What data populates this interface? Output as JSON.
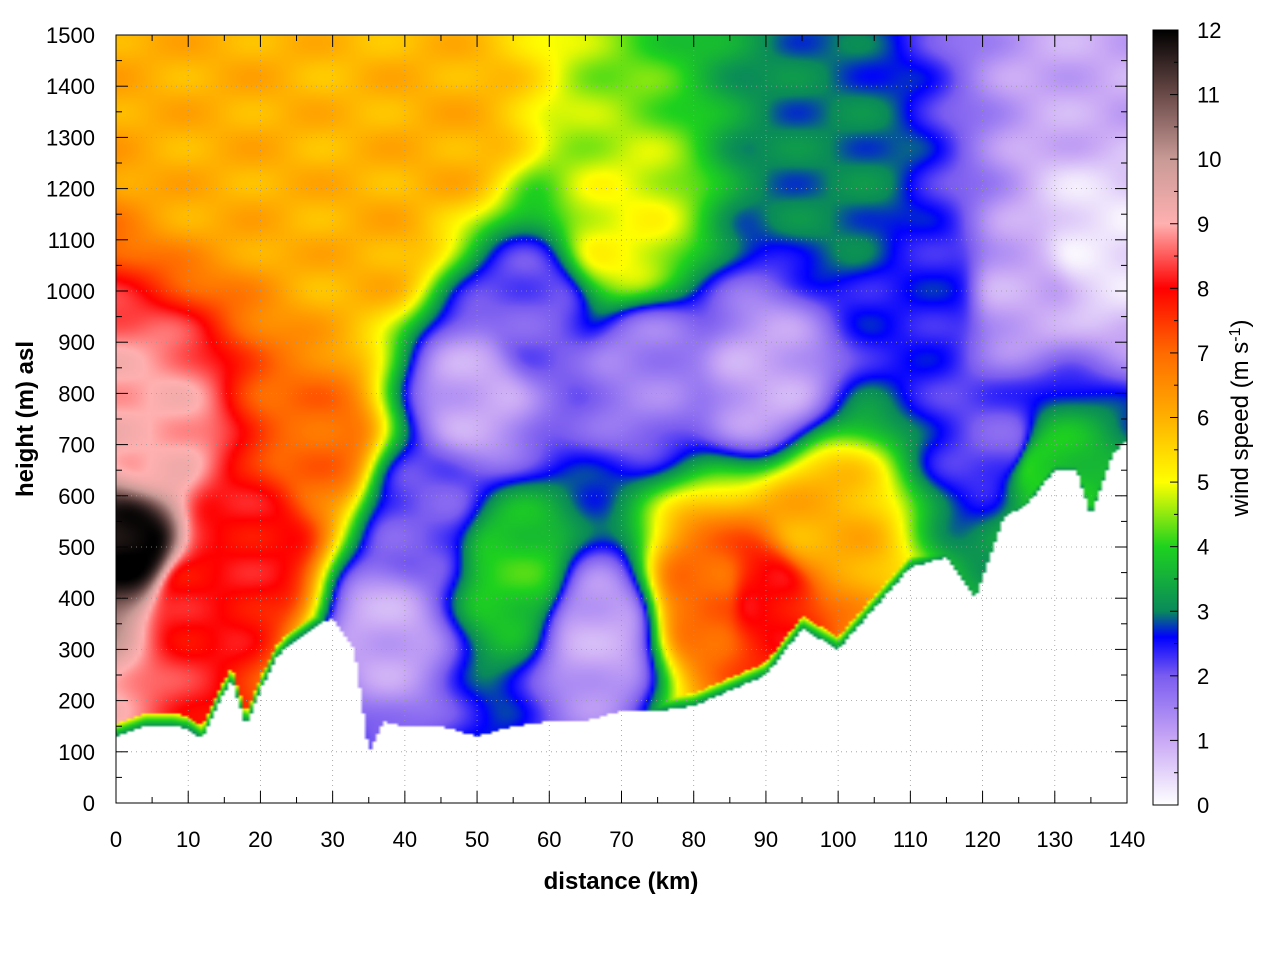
{
  "chart_data": {
    "type": "heatmap",
    "title": "",
    "xlabel": "distance (km)",
    "ylabel": "height (m) asl",
    "colorbar_label": "wind speed (m s-1)",
    "colorbar_label_parts": {
      "main": "wind speed (m s",
      "sup": "-1",
      "close": ")"
    },
    "xlim": [
      0,
      140
    ],
    "ylim": [
      0,
      1500
    ],
    "zlim": [
      0,
      12
    ],
    "x_ticks": [
      0,
      10,
      20,
      30,
      40,
      50,
      60,
      70,
      80,
      90,
      100,
      110,
      120,
      130,
      140
    ],
    "y_ticks": [
      0,
      100,
      200,
      300,
      400,
      500,
      600,
      700,
      800,
      900,
      1000,
      1100,
      1200,
      1300,
      1400,
      1500
    ],
    "colorbar_ticks": [
      0,
      1,
      2,
      3,
      4,
      5,
      6,
      7,
      8,
      9,
      10,
      11,
      12
    ],
    "grid": true,
    "colormap": [
      {
        "value": 0,
        "color": "#ffffff"
      },
      {
        "value": 1,
        "color": "#c9a8f5"
      },
      {
        "value": 2,
        "color": "#7a5cf0"
      },
      {
        "value": 2.6,
        "color": "#0000ff"
      },
      {
        "value": 3,
        "color": "#0a8a5a"
      },
      {
        "value": 4,
        "color": "#1ed21e"
      },
      {
        "value": 5,
        "color": "#ffff00"
      },
      {
        "value": 6,
        "color": "#ffb000"
      },
      {
        "value": 7,
        "color": "#ff6a00"
      },
      {
        "value": 8,
        "color": "#ff0000"
      },
      {
        "value": 9,
        "color": "#ffb0b0"
      },
      {
        "value": 10,
        "color": "#c89a96"
      },
      {
        "value": 11,
        "color": "#6a4a48"
      },
      {
        "value": 12,
        "color": "#000000"
      }
    ],
    "terrain_height": [
      [
        0,
        130
      ],
      [
        2,
        140
      ],
      [
        4,
        150
      ],
      [
        8,
        150
      ],
      [
        10,
        145
      ],
      [
        12,
        125
      ],
      [
        14,
        190
      ],
      [
        16,
        240
      ],
      [
        18,
        150
      ],
      [
        20,
        220
      ],
      [
        22,
        280
      ],
      [
        24,
        310
      ],
      [
        28,
        350
      ],
      [
        30,
        360
      ],
      [
        33,
        300
      ],
      [
        35,
        100
      ],
      [
        37,
        160
      ],
      [
        40,
        150
      ],
      [
        45,
        150
      ],
      [
        50,
        130
      ],
      [
        55,
        150
      ],
      [
        60,
        160
      ],
      [
        65,
        160
      ],
      [
        70,
        180
      ],
      [
        75,
        180
      ],
      [
        80,
        190
      ],
      [
        85,
        220
      ],
      [
        90,
        250
      ],
      [
        95,
        340
      ],
      [
        100,
        300
      ],
      [
        105,
        380
      ],
      [
        110,
        460
      ],
      [
        115,
        480
      ],
      [
        119,
        400
      ],
      [
        123,
        560
      ],
      [
        126,
        580
      ],
      [
        130,
        650
      ],
      [
        133,
        650
      ],
      [
        135,
        560
      ],
      [
        138,
        680
      ],
      [
        140,
        710
      ]
    ],
    "wind_speed_features": [
      {
        "x": 3,
        "y": 500,
        "value": 12
      },
      {
        "x": 5,
        "y": 700,
        "value": 9
      },
      {
        "x": 10,
        "y": 400,
        "value": 8
      },
      {
        "x": 15,
        "y": 500,
        "value": 8
      },
      {
        "x": 20,
        "y": 500,
        "value": 8
      },
      {
        "x": 28,
        "y": 700,
        "value": 7
      },
      {
        "x": 15,
        "y": 1300,
        "value": 6
      },
      {
        "x": 35,
        "y": 1100,
        "value": 6
      },
      {
        "x": 45,
        "y": 1300,
        "value": 6
      },
      {
        "x": 37,
        "y": 350,
        "value": 1
      },
      {
        "x": 42,
        "y": 550,
        "value": 2
      },
      {
        "x": 50,
        "y": 800,
        "value": 1
      },
      {
        "x": 58,
        "y": 950,
        "value": 2
      },
      {
        "x": 55,
        "y": 450,
        "value": 4
      },
      {
        "x": 67,
        "y": 330,
        "value": 1
      },
      {
        "x": 73,
        "y": 850,
        "value": 1.5
      },
      {
        "x": 70,
        "y": 1100,
        "value": 5
      },
      {
        "x": 82,
        "y": 400,
        "value": 7
      },
      {
        "x": 90,
        "y": 400,
        "value": 8
      },
      {
        "x": 90,
        "y": 820,
        "value": 1
      },
      {
        "x": 97,
        "y": 550,
        "value": 6
      },
      {
        "x": 100,
        "y": 1200,
        "value": 3
      },
      {
        "x": 113,
        "y": 1000,
        "value": 2.5
      },
      {
        "x": 123,
        "y": 700,
        "value": 2
      },
      {
        "x": 128,
        "y": 650,
        "value": 4
      },
      {
        "x": 125,
        "y": 1000,
        "value": 1
      },
      {
        "x": 136,
        "y": 1100,
        "value": 0.3
      },
      {
        "x": 137,
        "y": 1400,
        "value": 1
      }
    ]
  }
}
